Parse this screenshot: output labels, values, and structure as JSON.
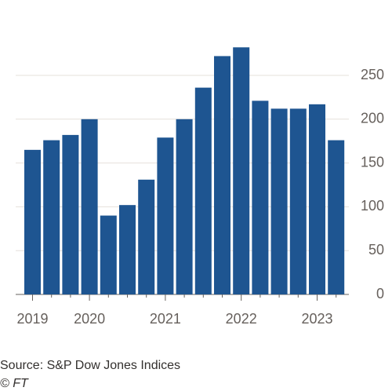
{
  "chart_data": {
    "type": "bar",
    "categories": [
      "2019",
      null,
      null,
      "2020",
      null,
      null,
      null,
      "2021",
      null,
      null,
      null,
      "2022",
      null,
      null,
      null,
      "2023",
      null
    ],
    "values": [
      165,
      176,
      182,
      200,
      90,
      102,
      131,
      179,
      200,
      236,
      272,
      282,
      221,
      212,
      212,
      217,
      176
    ],
    "color": "#1e5591",
    "ylim": [
      0,
      290
    ],
    "yticks": [
      0,
      50,
      100,
      150,
      200,
      250
    ],
    "grid": true,
    "source": "Source: S&P Dow Jones Indices",
    "credit": "© FT"
  }
}
